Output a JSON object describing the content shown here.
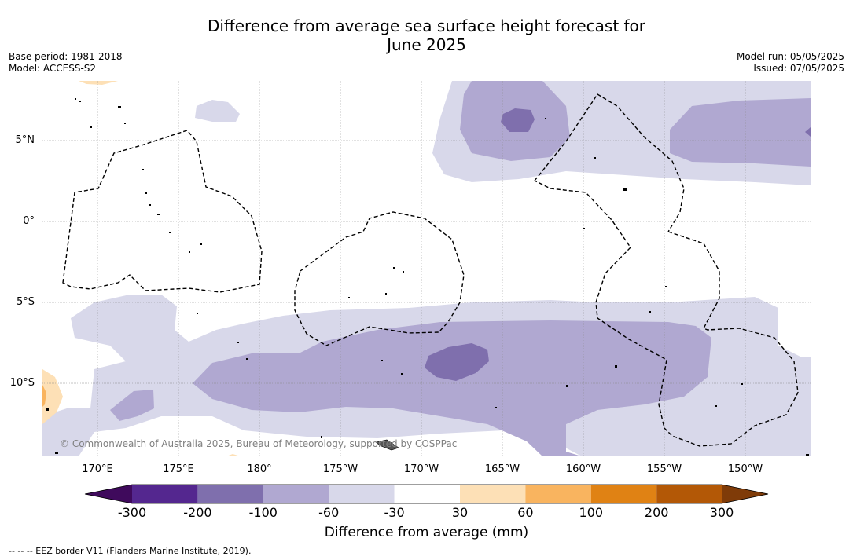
{
  "title_line1": "Difference from average sea surface height forecast for",
  "title_line2": "June 2025",
  "base_period": "Base period: 1981-2018",
  "model": "Model: ACCESS-S2",
  "model_run": "Model run: 05/05/2025",
  "issued": "Issued: 07/05/2025",
  "copyright": "© Commonwealth of Australia 2025, Bureau of Meteorology, supported by COSPPac",
  "footnote": "--  --  -- EEZ border V11 (Flanders Marine Institute, 2019).",
  "lat_labels": [
    "5°N",
    "0°",
    "5°S",
    "10°S"
  ],
  "lon_labels": [
    "170°E",
    "175°E",
    "180°",
    "175°W",
    "170°W",
    "165°W",
    "160°W",
    "155°W",
    "150°W"
  ],
  "colorbar": {
    "title": "Difference from average (mm)",
    "ticks": [
      "-300",
      "-200",
      "-100",
      "-60",
      "-30",
      "30",
      "60",
      "100",
      "200",
      "300"
    ],
    "colors": [
      "#3f0a5c",
      "#54278f",
      "#7f6fad",
      "#b0a8d1",
      "#d8d8ea",
      "#ffffff",
      "#fde0b6",
      "#f9b45f",
      "#e08214",
      "#b35806",
      "#7f3b08"
    ]
  }
}
